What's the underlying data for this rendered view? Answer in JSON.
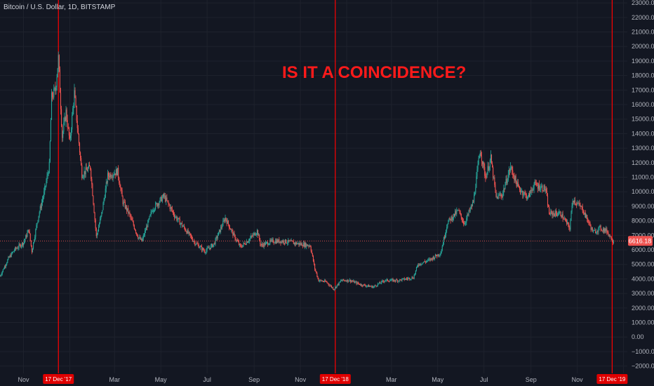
{
  "chart_data": {
    "type": "candlestick",
    "title": "Bitcoin / U.S. Dollar, 1D, BITSTAMP",
    "annotation": "IS IT  A COINCIDENCE?",
    "y_axis": {
      "position": "right",
      "ylim": [
        -2500,
        23200
      ],
      "ticks": [
        -2000,
        -1000,
        0,
        1000,
        2000,
        3000,
        4000,
        5000,
        6000,
        7000,
        8000,
        9000,
        10000,
        11000,
        12000,
        13000,
        14000,
        15000,
        16000,
        17000,
        18000,
        19000,
        20000,
        21000,
        22000,
        23000
      ],
      "tick_labels": [
        "−2000.00",
        "−1000.00",
        "0.00",
        "1000.00",
        "2000.00",
        "3000.00",
        "4000.00",
        "5000.00",
        "6000.00",
        "7000.00",
        "8000.00",
        "9000.00",
        "10000.00",
        "11000.00",
        "12000.00",
        "13000.00",
        "14000.00",
        "15000.00",
        "16000.00",
        "17000.00",
        "18000.00",
        "19000.00",
        "20000.00",
        "21000.00",
        "22000.00",
        "23000.00"
      ]
    },
    "x_axis": {
      "start_date": "2017-10-01",
      "end_date": "2020-01-06",
      "ticks": [
        {
          "date": "2017-11-01",
          "label": "Nov"
        },
        {
          "date": "2018-01-01",
          "label": "8"
        },
        {
          "date": "2018-03-01",
          "label": "Mar"
        },
        {
          "date": "2018-05-01",
          "label": "May"
        },
        {
          "date": "2018-07-01",
          "label": "Jul"
        },
        {
          "date": "2018-09-01",
          "label": "Sep"
        },
        {
          "date": "2018-11-01",
          "label": "Nov"
        },
        {
          "date": "2019-01-01",
          "label": "9"
        },
        {
          "date": "2019-03-01",
          "label": "Mar"
        },
        {
          "date": "2019-05-01",
          "label": "May"
        },
        {
          "date": "2019-07-01",
          "label": "Jul"
        },
        {
          "date": "2019-09-01",
          "label": "Sep"
        },
        {
          "date": "2019-11-01",
          "label": "Nov"
        },
        {
          "date": "2020-01-01",
          "label": "0"
        }
      ]
    },
    "markers": [
      {
        "date": "2017-12-17",
        "label": "17 Dec '17"
      },
      {
        "date": "2018-12-17",
        "label": "17 Dec '18"
      },
      {
        "date": "2019-12-17",
        "label": "17 Dec '19"
      }
    ],
    "current_price": {
      "value": 6616.18,
      "label": "6616.18"
    },
    "price_series": [
      {
        "date": "2017-10-01",
        "price": 4200
      },
      {
        "date": "2017-10-12",
        "price": 5400
      },
      {
        "date": "2017-10-20",
        "price": 6000
      },
      {
        "date": "2017-11-01",
        "price": 6500
      },
      {
        "date": "2017-11-08",
        "price": 7400
      },
      {
        "date": "2017-11-12",
        "price": 5900
      },
      {
        "date": "2017-11-20",
        "price": 8200
      },
      {
        "date": "2017-11-28",
        "price": 9900
      },
      {
        "date": "2017-12-05",
        "price": 11800
      },
      {
        "date": "2017-12-08",
        "price": 16500
      },
      {
        "date": "2017-12-13",
        "price": 17000
      },
      {
        "date": "2017-12-17",
        "price": 19200
      },
      {
        "date": "2017-12-22",
        "price": 13800
      },
      {
        "date": "2017-12-27",
        "price": 15500
      },
      {
        "date": "2018-01-01",
        "price": 13400
      },
      {
        "date": "2018-01-07",
        "price": 16800
      },
      {
        "date": "2018-01-12",
        "price": 13900
      },
      {
        "date": "2018-01-17",
        "price": 11200
      },
      {
        "date": "2018-01-28",
        "price": 11700
      },
      {
        "date": "2018-02-05",
        "price": 6900
      },
      {
        "date": "2018-02-12",
        "price": 8500
      },
      {
        "date": "2018-02-20",
        "price": 11100
      },
      {
        "date": "2018-03-05",
        "price": 11400
      },
      {
        "date": "2018-03-12",
        "price": 9300
      },
      {
        "date": "2018-03-20",
        "price": 8500
      },
      {
        "date": "2018-04-01",
        "price": 6900
      },
      {
        "date": "2018-04-06",
        "price": 6600
      },
      {
        "date": "2018-04-20",
        "price": 8800
      },
      {
        "date": "2018-05-05",
        "price": 9700
      },
      {
        "date": "2018-05-20",
        "price": 8300
      },
      {
        "date": "2018-06-01",
        "price": 7500
      },
      {
        "date": "2018-06-15",
        "price": 6500
      },
      {
        "date": "2018-06-28",
        "price": 5900
      },
      {
        "date": "2018-07-10",
        "price": 6400
      },
      {
        "date": "2018-07-25",
        "price": 8200
      },
      {
        "date": "2018-08-05",
        "price": 7000
      },
      {
        "date": "2018-08-14",
        "price": 6200
      },
      {
        "date": "2018-08-25",
        "price": 6700
      },
      {
        "date": "2018-09-05",
        "price": 7300
      },
      {
        "date": "2018-09-10",
        "price": 6300
      },
      {
        "date": "2018-09-25",
        "price": 6600
      },
      {
        "date": "2018-10-10",
        "price": 6600
      },
      {
        "date": "2018-11-01",
        "price": 6400
      },
      {
        "date": "2018-11-14",
        "price": 6300
      },
      {
        "date": "2018-11-20",
        "price": 4700
      },
      {
        "date": "2018-11-25",
        "price": 3900
      },
      {
        "date": "2018-12-05",
        "price": 3800
      },
      {
        "date": "2018-12-15",
        "price": 3300
      },
      {
        "date": "2018-12-25",
        "price": 3900
      },
      {
        "date": "2019-01-05",
        "price": 3900
      },
      {
        "date": "2019-01-20",
        "price": 3600
      },
      {
        "date": "2019-02-05",
        "price": 3450
      },
      {
        "date": "2019-02-20",
        "price": 3900
      },
      {
        "date": "2019-03-10",
        "price": 3900
      },
      {
        "date": "2019-03-30",
        "price": 4100
      },
      {
        "date": "2019-04-05",
        "price": 5000
      },
      {
        "date": "2019-04-20",
        "price": 5300
      },
      {
        "date": "2019-05-05",
        "price": 5800
      },
      {
        "date": "2019-05-14",
        "price": 7900
      },
      {
        "date": "2019-05-28",
        "price": 8700
      },
      {
        "date": "2019-06-05",
        "price": 7800
      },
      {
        "date": "2019-06-17",
        "price": 9300
      },
      {
        "date": "2019-06-26",
        "price": 12900
      },
      {
        "date": "2019-07-03",
        "price": 11000
      },
      {
        "date": "2019-07-10",
        "price": 12300
      },
      {
        "date": "2019-07-17",
        "price": 9600
      },
      {
        "date": "2019-07-25",
        "price": 9800
      },
      {
        "date": "2019-08-05",
        "price": 11700
      },
      {
        "date": "2019-08-15",
        "price": 10300
      },
      {
        "date": "2019-08-28",
        "price": 9600
      },
      {
        "date": "2019-09-05",
        "price": 10500
      },
      {
        "date": "2019-09-20",
        "price": 10200
      },
      {
        "date": "2019-09-25",
        "price": 8500
      },
      {
        "date": "2019-10-10",
        "price": 8500
      },
      {
        "date": "2019-10-22",
        "price": 7500
      },
      {
        "date": "2019-10-26",
        "price": 9500
      },
      {
        "date": "2019-11-08",
        "price": 8800
      },
      {
        "date": "2019-11-22",
        "price": 7200
      },
      {
        "date": "2019-12-01",
        "price": 7500
      },
      {
        "date": "2019-12-10",
        "price": 7300
      },
      {
        "date": "2019-12-17",
        "price": 6700
      },
      {
        "date": "2019-12-19",
        "price": 6616.18
      }
    ],
    "up_color": "#26a69a",
    "down_color": "#ef5350",
    "marker_color": "#ff0000",
    "grid": true,
    "legend": "none"
  }
}
